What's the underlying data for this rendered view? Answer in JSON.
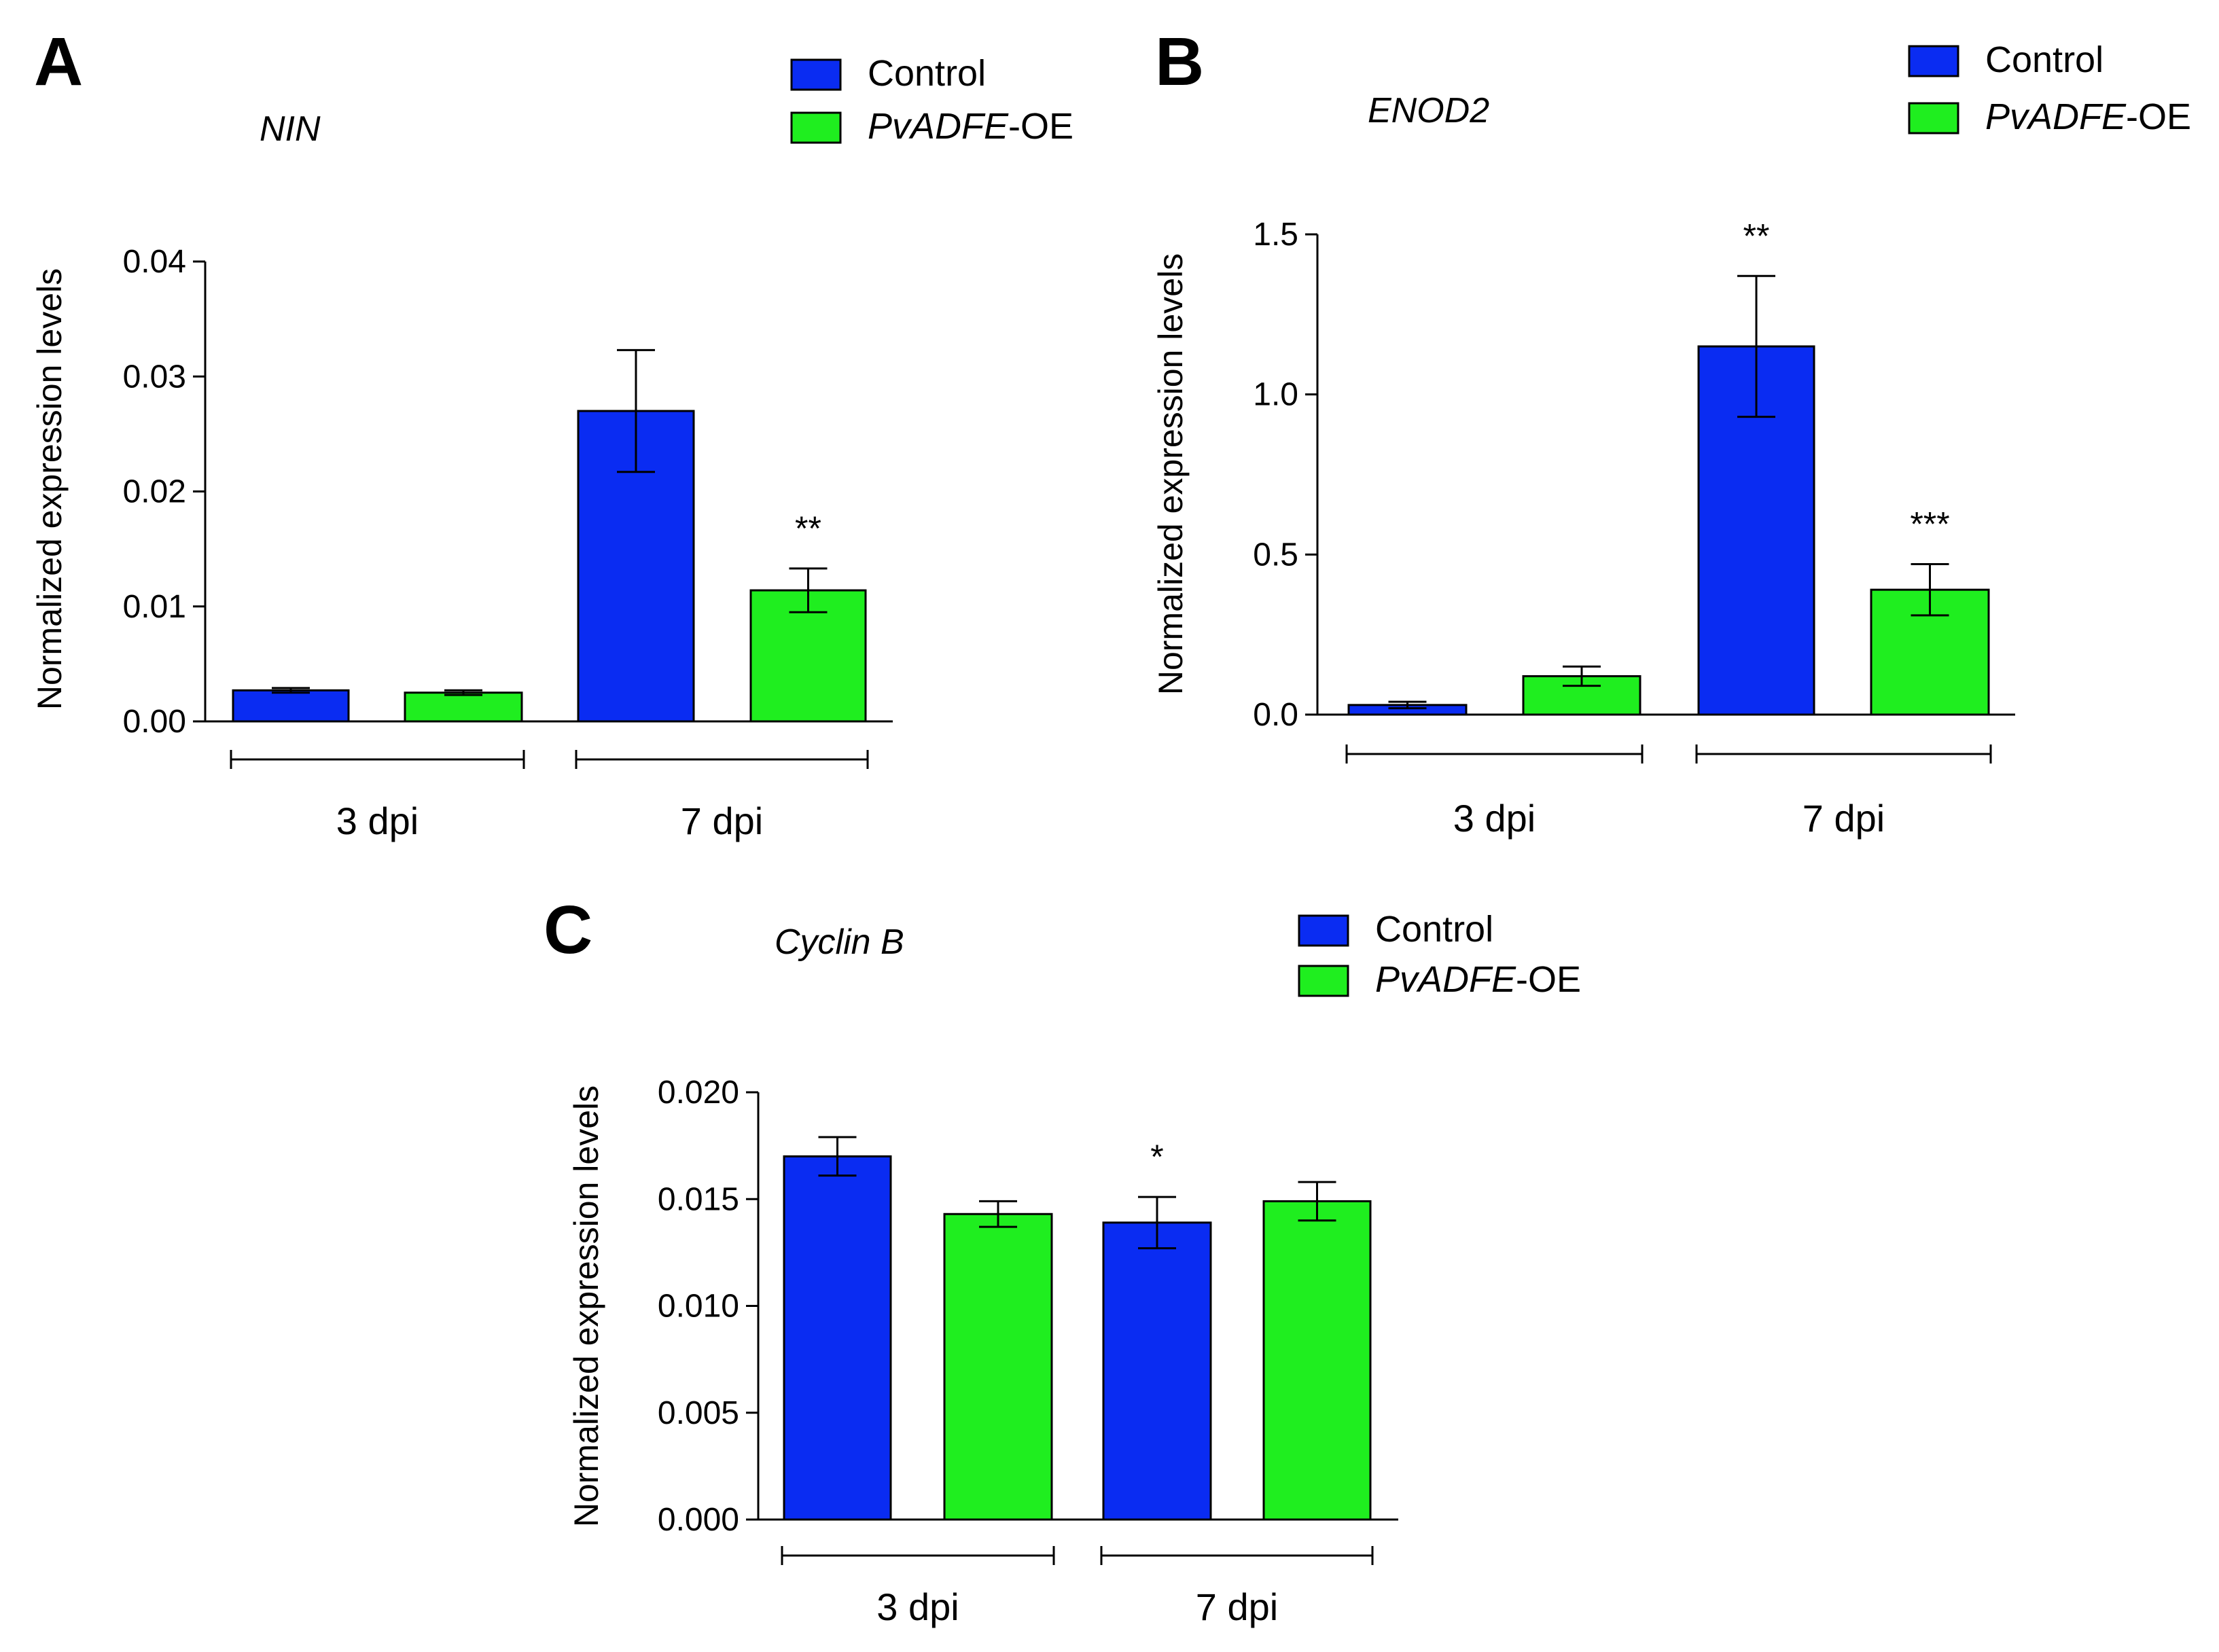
{
  "chart_data": [
    {
      "type": "bar",
      "panel": "A",
      "title": "NIN",
      "ylabel": "Normalized  expression levels",
      "ylim": [
        0,
        0.04
      ],
      "yticks": [
        "0.00",
        "0.01",
        "0.02",
        "0.03",
        "0.04"
      ],
      "groups": [
        "3 dpi",
        "7 dpi"
      ],
      "legend": [
        {
          "name": "Control",
          "suffix": ""
        },
        {
          "name": "PvADFE",
          "suffix": "-OE"
        }
      ],
      "series": [
        {
          "name": "Control",
          "color": "#0a2cf2",
          "values": [
            0.0027,
            0.027
          ],
          "errors": [
            0.0002,
            0.0053
          ]
        },
        {
          "name": "PvADFE-OE",
          "color": "#1fee1f",
          "values": [
            0.0025,
            0.0114
          ],
          "errors": [
            0.0002,
            0.0019
          ]
        }
      ],
      "significance": [
        [
          "",
          ""
        ],
        [
          "",
          "**"
        ]
      ]
    },
    {
      "type": "bar",
      "panel": "B",
      "title": "ENOD2",
      "ylabel": "Normalized  expression levels",
      "ylim": [
        0,
        1.5
      ],
      "yticks": [
        "0.0",
        "0.5",
        "1.0",
        "1.5"
      ],
      "groups": [
        "3 dpi",
        "7 dpi"
      ],
      "legend": [
        {
          "name": "Control",
          "suffix": ""
        },
        {
          "name": "PvADFE",
          "suffix": "-OE"
        }
      ],
      "series": [
        {
          "name": "Control",
          "color": "#0a2cf2",
          "values": [
            0.03,
            1.15
          ],
          "errors": [
            0.01,
            0.22
          ]
        },
        {
          "name": "PvADFE-OE",
          "color": "#1fee1f",
          "values": [
            0.12,
            0.39
          ],
          "errors": [
            0.03,
            0.08
          ]
        }
      ],
      "significance": [
        [
          "",
          "**"
        ],
        [
          "",
          "***"
        ]
      ]
    },
    {
      "type": "bar",
      "panel": "C",
      "title": "Cyclin B",
      "ylabel": "Normalized  expression levels",
      "ylim": [
        0,
        0.02
      ],
      "yticks": [
        "0.000",
        "0.005",
        "0.010",
        "0.015",
        "0.020"
      ],
      "groups": [
        "3 dpi",
        "7 dpi"
      ],
      "legend": [
        {
          "name": "Control",
          "suffix": ""
        },
        {
          "name": "PvADFE",
          "suffix": "-OE"
        }
      ],
      "series": [
        {
          "name": "Control",
          "color": "#0a2cf2",
          "values": [
            0.017,
            0.0139
          ],
          "errors": [
            0.0009,
            0.0012
          ]
        },
        {
          "name": "PvADFE-OE",
          "color": "#1fee1f",
          "values": [
            0.0143,
            0.0149
          ],
          "errors": [
            0.0006,
            0.0009
          ]
        }
      ],
      "significance": [
        [
          "",
          "*"
        ],
        [
          "",
          ""
        ]
      ]
    }
  ]
}
